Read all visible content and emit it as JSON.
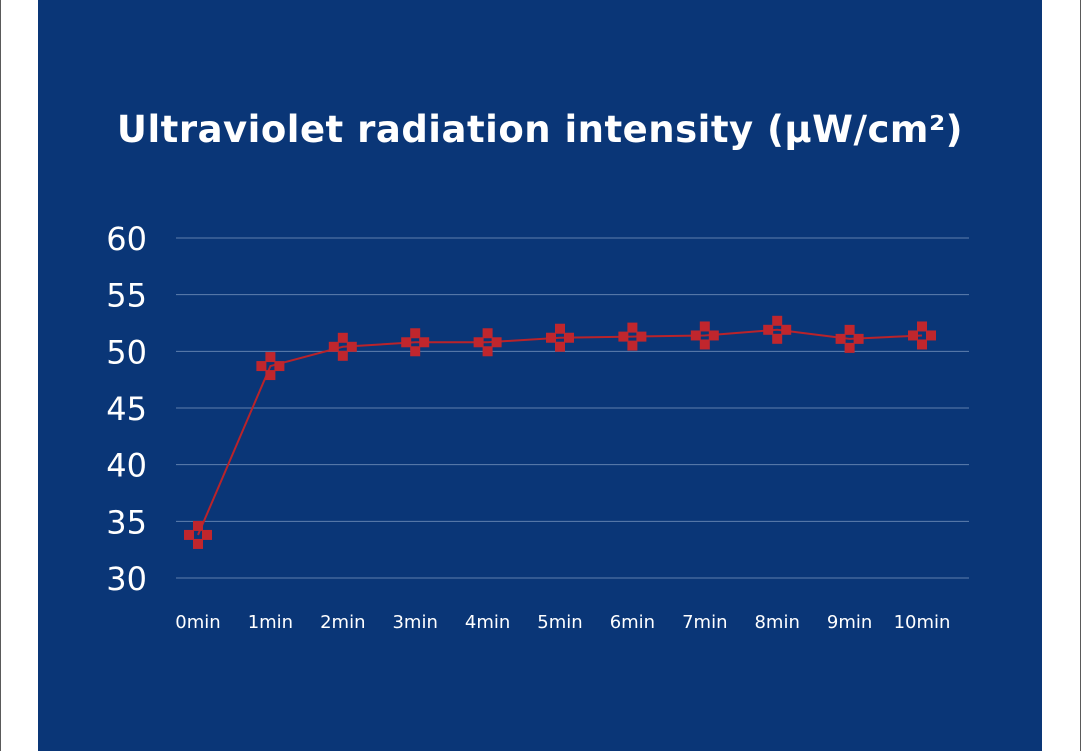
{
  "chart_data": {
    "type": "line",
    "title": "Ultraviolet radiation intensity (µW/cm²)",
    "xlabel": "",
    "ylabel": "",
    "categories": [
      "0min",
      "1min",
      "2min",
      "3min",
      "4min",
      "5min",
      "6min",
      "7min",
      "8min",
      "9min",
      "10min"
    ],
    "series": [
      {
        "name": "Ultraviolet radiation intensity",
        "values": [
          33.8,
          48.7,
          50.4,
          50.8,
          50.8,
          51.2,
          51.3,
          51.4,
          51.9,
          51.1,
          51.4
        ],
        "color": "#c0262d",
        "marker": "cross"
      }
    ],
    "ylim": [
      30,
      60
    ],
    "yticks": [
      60,
      55,
      50,
      45,
      40,
      35,
      30
    ],
    "grid": true,
    "background": "#0a3677",
    "text_color": "#ffffff",
    "grid_color": "#5f7fae"
  }
}
